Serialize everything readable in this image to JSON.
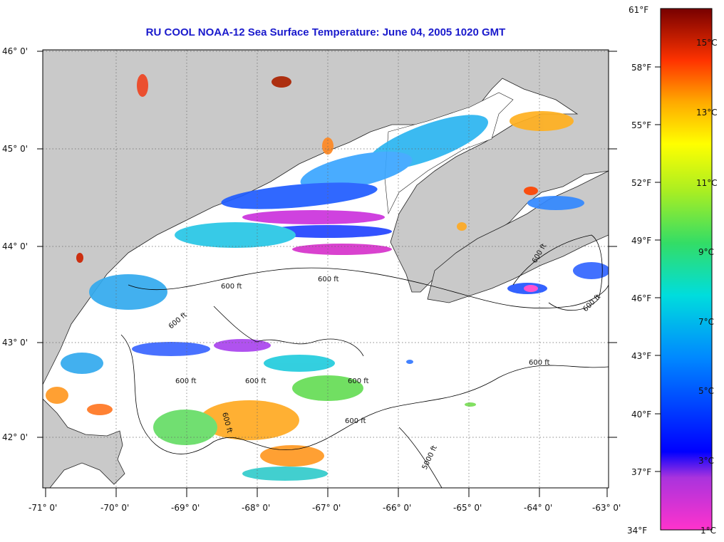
{
  "title": "RU COOL  NOAA-12  Sea Surface Temperature:  June 04, 2005 1020 GMT",
  "colors": {
    "land": "#c9c9c9",
    "ocean": "#ffffff",
    "title": "#1a1acc",
    "grid": "#555555"
  },
  "lat_labels": [
    "46° 0'",
    "45° 0'",
    "44° 0'",
    "43° 0'",
    "42° 0'"
  ],
  "lon_labels": [
    "-71° 0'",
    "-70° 0'",
    "-69° 0'",
    "-68° 0'",
    "-67° 0'",
    "-66° 0'",
    "-65° 0'",
    "-64° 0'",
    "-63° 0'"
  ],
  "contour_labels": [
    "600 ft",
    "600 ft",
    "600 ft",
    "600 ft",
    "600 ft",
    "600 ft",
    "600 ft",
    "600 ft",
    "600 ft",
    "600 ft",
    "600 ft",
    "5000 ft"
  ],
  "colorbar": {
    "fahrenheit": [
      "61°F",
      "58°F",
      "55°F",
      "52°F",
      "49°F",
      "46°F",
      "43°F",
      "40°F",
      "37°F",
      "34°F"
    ],
    "celsius": [
      "15°C",
      "13°C",
      "11°C",
      "9°C",
      "7°C",
      "5°C",
      "3°C",
      "1°C"
    ]
  }
}
